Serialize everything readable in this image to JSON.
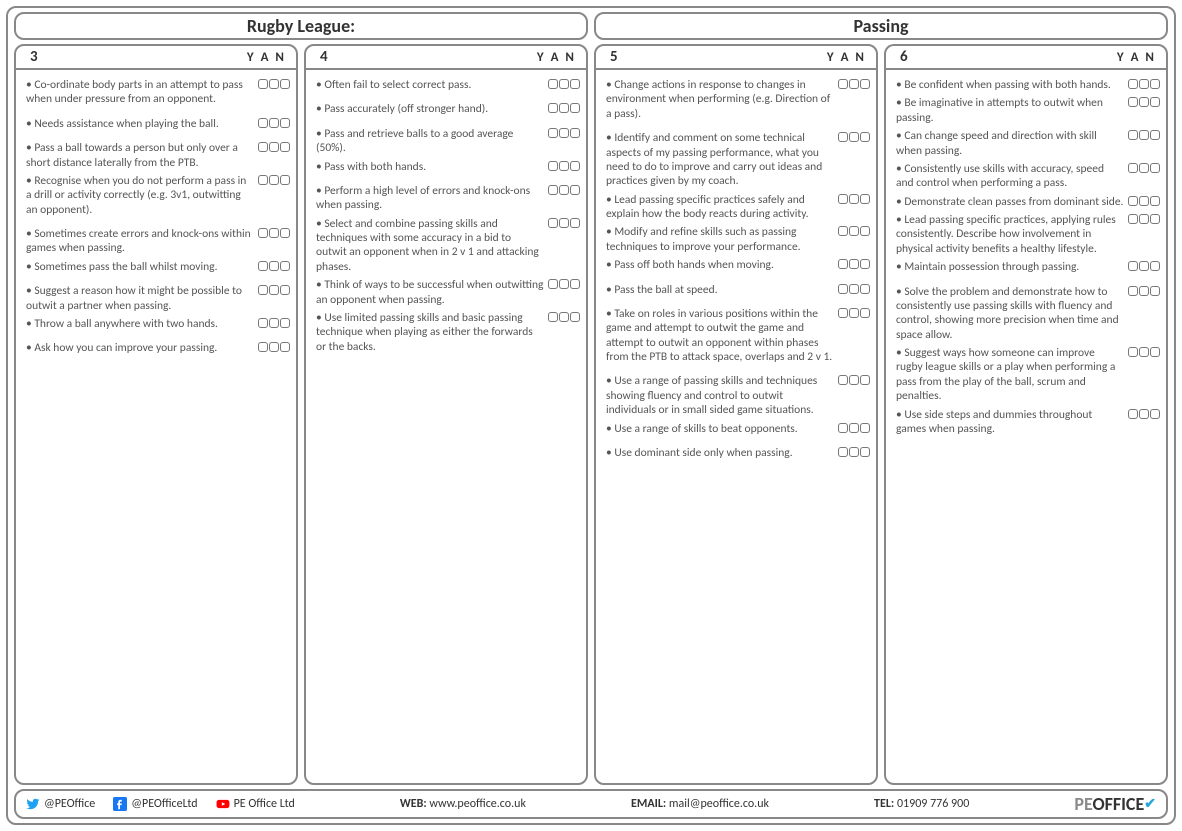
{
  "header": {
    "left": "Rugby League:",
    "right": "Passing"
  },
  "yan_label": "Y A N",
  "columns": [
    {
      "num": "3",
      "groups": [
        [
          "Co-ordinate body parts in an attempt to pass when under pressure from an opponent."
        ],
        [
          "Needs assistance when playing the ball."
        ],
        [
          "Pass a ball towards a person but only over a short distance laterally from the PTB.",
          "Recognise when you do not perform a pass in a drill or activity correctly (e.g. 3v1, outwitting an opponent)."
        ],
        [
          "Sometimes create errors and knock-ons within games when passing.",
          "Sometimes pass the ball whilst moving."
        ],
        [
          "Suggest a reason how it might be possible to outwit a partner when passing.",
          "Throw a ball anywhere with two hands."
        ],
        [
          "Ask how you can improve your passing."
        ]
      ]
    },
    {
      "num": "4",
      "groups": [
        [
          "Often fail to select correct pass."
        ],
        [
          "Pass accurately (off stronger hand)."
        ],
        [
          "Pass and retrieve balls to a good average (50%).",
          "Pass with both hands."
        ],
        [
          "Perform a high level of errors and knock-ons when passing.",
          "Select and combine passing skills and techniques with some accuracy in a bid to outwit an opponent when in 2 v 1 and attacking phases.",
          "Think of ways to be successful when outwitting an opponent when passing.",
          "Use limited passing skills and basic passing technique when playing as either the forwards or the backs."
        ]
      ]
    },
    {
      "num": "5",
      "groups": [
        [
          "Change actions in response to changes in environment when performing (e.g. Direction of a pass)."
        ],
        [
          "Identify and comment on some technical aspects of my passing performance, what you need to do to improve and carry out ideas and practices given by my coach.",
          "Lead passing specific practices safely and explain how the body reacts during activity.",
          "Modify and refine skills such as passing techniques to improve your performance.",
          "Pass off both hands when moving."
        ],
        [
          "Pass the ball at speed."
        ],
        [
          "Take on roles in various positions within the game and attempt to outwit the game and attempt to outwit an opponent within phases from the PTB to attack space, overlaps and 2 v 1."
        ],
        [
          "Use a range of passing skills and techniques showing fluency and control to outwit individuals or in small sided game situations.",
          "Use a range of skills to beat opponents."
        ],
        [
          "Use dominant side only when passing."
        ]
      ]
    },
    {
      "num": "6",
      "groups": [
        [
          "Be confident when passing with both hands.",
          "Be imaginative in attempts to outwit when passing.",
          "Can change speed and direction with skill when passing.",
          "Consistently use skills with accuracy, speed and control when performing a pass.",
          "Demonstrate clean passes from dominant side.",
          "Lead passing specific practices, applying rules consistently. Describe how involvement in physical activity benefits a healthy lifestyle.",
          "Maintain possession through passing."
        ],
        [
          "Solve the problem and demonstrate how to consistently use passing skills with fluency and control, showing more precision when time and space allow.",
          "Suggest ways how someone can improve rugby league skills or a play when performing a pass from the play of the ball, scrum and penalties.",
          "Use side steps and dummies throughout games when passing."
        ]
      ]
    }
  ],
  "footer": {
    "twitter": "@PEOffice",
    "facebook": "@PEOfficeLtd",
    "youtube": "PE Office Ltd",
    "web_label": "WEB:",
    "web": "www.peoffice.co.uk",
    "email_label": "EMAIL:",
    "email": "mail@peoffice.co.uk",
    "tel_label": "TEL:",
    "tel": "01909 776 900",
    "logo_pe": "PE",
    "logo_office": "OFFICE"
  },
  "colors": {
    "twitter": "#1da1f2",
    "facebook": "#1877f2",
    "youtube": "#ff0000",
    "tick": "#2aa5d9"
  }
}
